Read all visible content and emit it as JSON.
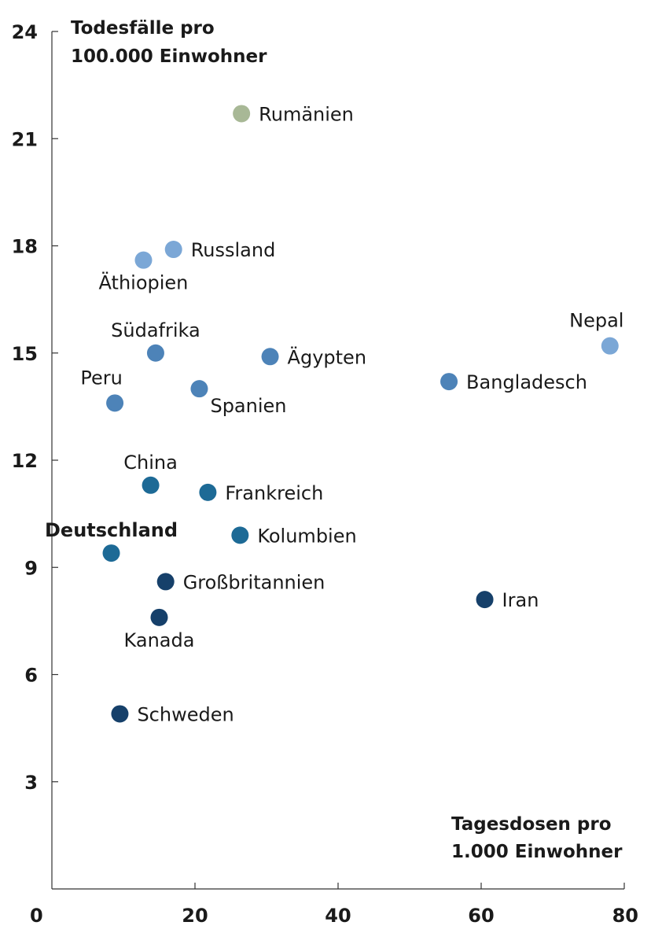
{
  "chart_data": {
    "type": "scatter",
    "ylabel_lines": [
      "Todesfälle pro",
      "100.000 Einwohner"
    ],
    "xlabel_lines": [
      "Tagesdosen pro",
      "1.000 Einwohner"
    ],
    "xlim": [
      0,
      80
    ],
    "ylim": [
      0,
      24
    ],
    "x_ticks": [
      0,
      20,
      40,
      60,
      80
    ],
    "y_ticks": [
      3,
      6,
      9,
      12,
      15,
      18,
      21,
      24
    ],
    "grid": false,
    "points": [
      {
        "label": "Rumänien",
        "x": 26.5,
        "y": 21.7,
        "color": "#a8b896",
        "label_pos": "right",
        "bold": false
      },
      {
        "label": "Russland",
        "x": 17.0,
        "y": 17.9,
        "color": "#7ba7d6",
        "label_pos": "right",
        "bold": false
      },
      {
        "label": "Äthiopien",
        "x": 12.8,
        "y": 17.6,
        "color": "#7ba7d6",
        "label_pos": "below",
        "bold": false
      },
      {
        "label": "Nepal",
        "x": 78.0,
        "y": 15.2,
        "color": "#7ba7d6",
        "label_pos": "above-left",
        "bold": false
      },
      {
        "label": "Südafrika",
        "x": 14.5,
        "y": 15.0,
        "color": "#4d83b8",
        "label_pos": "above",
        "bold": false
      },
      {
        "label": "Ägypten",
        "x": 30.5,
        "y": 14.9,
        "color": "#4d83b8",
        "label_pos": "right",
        "bold": false
      },
      {
        "label": "Bangladesch",
        "x": 55.5,
        "y": 14.2,
        "color": "#4d83b8",
        "label_pos": "right",
        "bold": false
      },
      {
        "label": "Spanien",
        "x": 20.6,
        "y": 14.0,
        "color": "#4d83b8",
        "label_pos": "below-right",
        "bold": false
      },
      {
        "label": "Peru",
        "x": 8.8,
        "y": 13.6,
        "color": "#4d83b8",
        "label_pos": "above-left",
        "bold": false
      },
      {
        "label": "China",
        "x": 13.8,
        "y": 11.3,
        "color": "#1d6a96",
        "label_pos": "above",
        "bold": false
      },
      {
        "label": "Frankreich",
        "x": 21.8,
        "y": 11.1,
        "color": "#1d6a96",
        "label_pos": "right",
        "bold": false
      },
      {
        "label": "Kolumbien",
        "x": 26.3,
        "y": 9.9,
        "color": "#1d6a96",
        "label_pos": "right",
        "bold": false
      },
      {
        "label": "Deutschland",
        "x": 8.3,
        "y": 9.4,
        "color": "#1d6a96",
        "label_pos": "above",
        "bold": true
      },
      {
        "label": "Großbritannien",
        "x": 15.9,
        "y": 8.6,
        "color": "#16406a",
        "label_pos": "right",
        "bold": false
      },
      {
        "label": "Iran",
        "x": 60.5,
        "y": 8.1,
        "color": "#16406a",
        "label_pos": "right",
        "bold": false
      },
      {
        "label": "Kanada",
        "x": 15.0,
        "y": 7.6,
        "color": "#16406a",
        "label_pos": "below",
        "bold": false
      },
      {
        "label": "Schweden",
        "x": 9.5,
        "y": 4.9,
        "color": "#16406a",
        "label_pos": "right",
        "bold": false
      }
    ]
  }
}
